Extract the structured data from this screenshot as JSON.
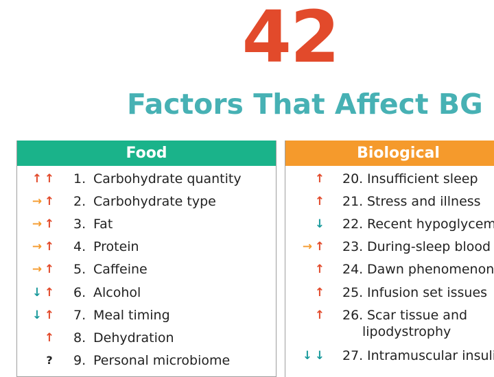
{
  "title": {
    "number": "42",
    "subtitle": "Factors That Affect BG"
  },
  "colors": {
    "up": "#e24a2b",
    "side": "#f59a2c",
    "down": "#1a9a9c",
    "food_header": "#1ab38a",
    "bio_header": "#f59a2c"
  },
  "food": {
    "header": "Food",
    "items": [
      {
        "num": "1.",
        "label": "Carbohydrate quantity",
        "arrows": [
          "↑",
          "↑"
        ],
        "arrow_colors": [
          "up",
          "up"
        ]
      },
      {
        "num": "2.",
        "label": "Carbohydrate type",
        "arrows": [
          "→",
          "↑"
        ],
        "arrow_colors": [
          "side",
          "up"
        ]
      },
      {
        "num": "3.",
        "label": "Fat",
        "arrows": [
          "→",
          "↑"
        ],
        "arrow_colors": [
          "side",
          "up"
        ]
      },
      {
        "num": "4.",
        "label": "Protein",
        "arrows": [
          "→",
          "↑"
        ],
        "arrow_colors": [
          "side",
          "up"
        ]
      },
      {
        "num": "5.",
        "label": "Caffeine",
        "arrows": [
          "→",
          "↑"
        ],
        "arrow_colors": [
          "side",
          "up"
        ]
      },
      {
        "num": "6.",
        "label": "Alcohol",
        "arrows": [
          "↓",
          "↑"
        ],
        "arrow_colors": [
          "down",
          "up"
        ]
      },
      {
        "num": "7.",
        "label": "Meal timing",
        "arrows": [
          "↓",
          "↑"
        ],
        "arrow_colors": [
          "down",
          "up"
        ]
      },
      {
        "num": "8.",
        "label": "Dehydration",
        "arrows": [
          "",
          "↑"
        ],
        "arrow_colors": [
          "",
          "up"
        ]
      },
      {
        "num": "9.",
        "label": "Personal microbiome",
        "arrows": [
          "",
          "?"
        ],
        "arrow_colors": [
          "",
          "mark"
        ]
      }
    ]
  },
  "biological": {
    "header": "Biological",
    "items": [
      {
        "num": "20.",
        "label": "Insufficient sleep",
        "arrows": [
          "",
          "↑"
        ],
        "arrow_colors": [
          "",
          "up"
        ]
      },
      {
        "num": "21.",
        "label": "Stress and illness",
        "arrows": [
          "",
          "↑"
        ],
        "arrow_colors": [
          "",
          "up"
        ]
      },
      {
        "num": "22.",
        "label": "Recent hypoglycemia",
        "arrows": [
          "",
          "↓"
        ],
        "arrow_colors": [
          "",
          "down"
        ]
      },
      {
        "num": "23.",
        "label": "During-sleep blood",
        "arrows": [
          "→",
          "↑"
        ],
        "arrow_colors": [
          "side",
          "up"
        ]
      },
      {
        "num": "24.",
        "label": "Dawn phenomenon",
        "arrows": [
          "",
          "↑"
        ],
        "arrow_colors": [
          "",
          "up"
        ]
      },
      {
        "num": "25.",
        "label": "Infusion set issues",
        "arrows": [
          "",
          "↑"
        ],
        "arrow_colors": [
          "",
          "up"
        ]
      },
      {
        "num": "26.",
        "label": "Scar tissue and",
        "label2": "lipodystrophy",
        "arrows": [
          "",
          "↑"
        ],
        "arrow_colors": [
          "",
          "up"
        ]
      },
      {
        "num": "27.",
        "label": "Intramuscular insulin",
        "arrows": [
          "↓",
          "↓"
        ],
        "arrow_colors": [
          "down",
          "down"
        ]
      }
    ]
  }
}
